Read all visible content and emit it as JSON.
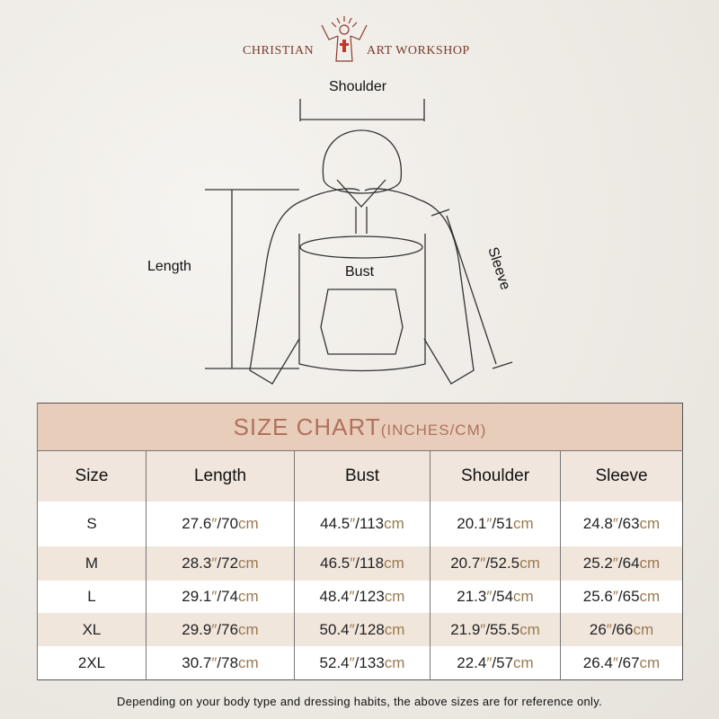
{
  "brand": {
    "left": "CHRISTIAN",
    "right": "ART WORKSHOP"
  },
  "diagram": {
    "shoulder": "Shoulder",
    "length": "Length",
    "bust": "Bust",
    "sleeve": "Sleeve"
  },
  "table": {
    "title": "SIZE CHART",
    "title_units": "(INCHES/CM)",
    "headers": [
      "Size",
      "Length",
      "Bust",
      "Shoulder",
      "Sleeve"
    ],
    "rows": [
      {
        "size": "S",
        "length": [
          "27.6",
          "70"
        ],
        "bust": [
          "44.5",
          "113"
        ],
        "shoulder": [
          "20.1",
          "51"
        ],
        "sleeve": [
          "24.8",
          "63"
        ]
      },
      {
        "size": "M",
        "length": [
          "28.3",
          "72"
        ],
        "bust": [
          "46.5",
          "118"
        ],
        "shoulder": [
          "20.7",
          "52.5"
        ],
        "sleeve": [
          "25.2",
          "64"
        ]
      },
      {
        "size": "L",
        "length": [
          "29.1",
          "74"
        ],
        "bust": [
          "48.4",
          "123"
        ],
        "shoulder": [
          "21.3",
          "54"
        ],
        "sleeve": [
          "25.6",
          "65"
        ]
      },
      {
        "size": "XL",
        "length": [
          "29.9",
          "76"
        ],
        "bust": [
          "50.4",
          "128"
        ],
        "shoulder": [
          "21.9",
          "55.5"
        ],
        "sleeve": [
          "26",
          "66"
        ]
      },
      {
        "size": "2XL",
        "length": [
          "30.7",
          "78"
        ],
        "bust": [
          "52.4",
          "133"
        ],
        "shoulder": [
          "22.4",
          "57"
        ],
        "sleeve": [
          "26.4",
          "67"
        ]
      }
    ],
    "unit_in": "″",
    "unit_cm": "cm"
  },
  "note": "Depending on your body type and dressing habits, the above sizes are for reference only."
}
